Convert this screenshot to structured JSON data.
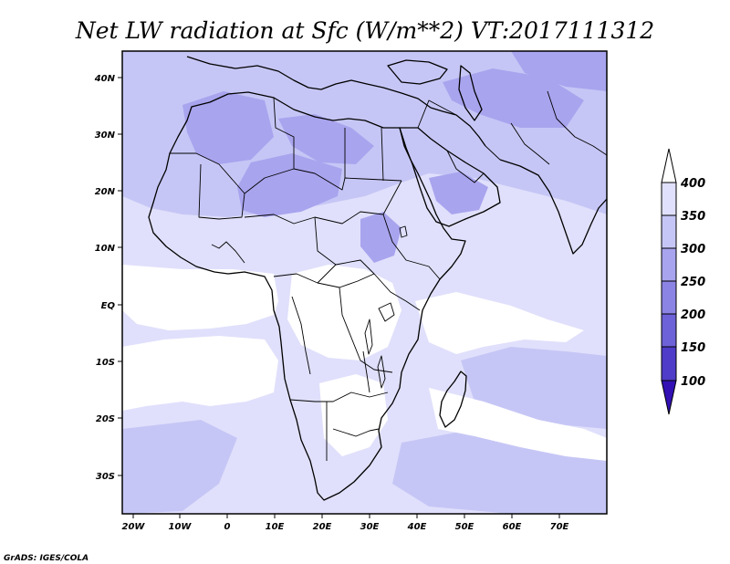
{
  "title": "Net LW radiation at Sfc (W/m**2) VT:2017111312",
  "credit": "GrADS: IGES/COLA",
  "map": {
    "lon_labels": [
      "20W",
      "10W",
      "0",
      "10E",
      "20E",
      "30E",
      "40E",
      "50E",
      "60E",
      "70E"
    ],
    "lat_labels": [
      "40N",
      "30N",
      "20N",
      "10N",
      "EQ",
      "10S",
      "20S",
      "30S"
    ],
    "colors": {
      "c350_400": "#e0e0fc",
      "c300_350": "#c6c6f6",
      "c250_300": "#a9a4ee",
      "white": "#ffffff"
    }
  },
  "colorbar": {
    "labels": [
      "400",
      "350",
      "300",
      "250",
      "200",
      "150",
      "100"
    ],
    "colors": [
      "#ffffff",
      "#e0e0fc",
      "#c6c6f6",
      "#a9a4ee",
      "#8c84e4",
      "#6e62d8",
      "#4f3cc8",
      "#3210b4"
    ]
  }
}
